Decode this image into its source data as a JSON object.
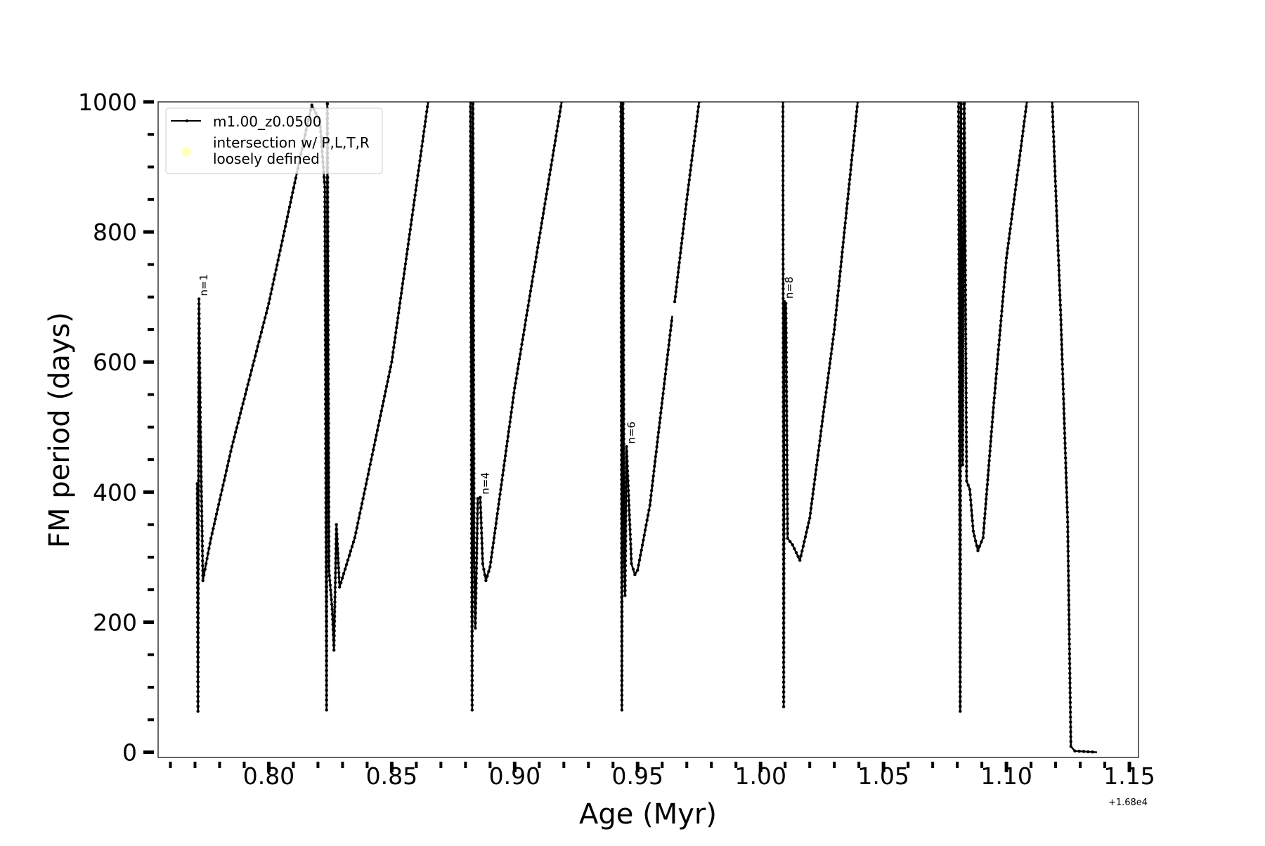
{
  "chart_data": {
    "type": "line",
    "title": "",
    "xlabel": "Age (Myr)",
    "ylabel": "FM period (days)",
    "x_offset_label": "+1.68e4",
    "xlim": [
      0.755,
      1.1537
    ],
    "ylim": [
      -8,
      1000
    ],
    "xticks": [
      0.8,
      0.85,
      0.9,
      0.95,
      1.0,
      1.05,
      1.1,
      1.15
    ],
    "xtick_labels": [
      "0.80",
      "0.85",
      "0.90",
      "0.95",
      "1.00",
      "1.05",
      "1.10",
      "1.15"
    ],
    "yticks": [
      0,
      200,
      400,
      600,
      800,
      1000
    ],
    "ytick_labels": [
      "0",
      "200",
      "400",
      "600",
      "800",
      "1000"
    ],
    "x_minor_step": 0.01,
    "y_minor_step": 50,
    "grid": false,
    "legend": {
      "placement": "top-left",
      "entries": [
        {
          "label": "m1.00_z0.0500",
          "marker": "line-dot",
          "color": "#000000"
        },
        {
          "label": "intersection w/ P,L,T,R\nloosely defined",
          "marker": "circle",
          "color": "#ffffc0"
        }
      ]
    },
    "series": [
      {
        "name": "m1.00_z0.0500",
        "color": "#000000",
        "segments": [
          [
            [
              0.7709,
              413
            ],
            [
              0.7712,
              63
            ],
            [
              0.7716,
              697
            ],
            [
              0.7722,
              500
            ],
            [
              0.7732,
              264
            ],
            [
              0.7745,
              290
            ],
            [
              0.7765,
              329
            ],
            [
              0.785,
              470
            ],
            [
              0.8,
              690
            ],
            [
              0.8152,
              957
            ],
            [
              0.8175,
              995
            ],
            [
              0.8208,
              970
            ],
            [
              0.8228,
              869
            ],
            [
              0.8235,
              65
            ],
            [
              0.8238,
              1050
            ],
            [
              0.8245,
              279
            ],
            [
              0.8258,
              220
            ],
            [
              0.8265,
              157
            ],
            [
              0.8275,
              350
            ],
            [
              0.8288,
              254
            ],
            [
              0.835,
              330
            ],
            [
              0.85,
              600
            ],
            [
              0.8648,
              1000
            ],
            [
              0.8655,
              1050
            ]
          ],
          [
            [
              0.8815,
              1050
            ],
            [
              0.882,
              1000
            ],
            [
              0.8827,
              65
            ],
            [
              0.883,
              1050
            ],
            [
              0.8835,
              300
            ],
            [
              0.884,
              191
            ],
            [
              0.885,
              390
            ],
            [
              0.886,
              392
            ],
            [
              0.887,
              290
            ],
            [
              0.8883,
              264
            ],
            [
              0.89,
              285
            ],
            [
              0.9,
              560
            ],
            [
              0.9191,
              1000
            ],
            [
              0.9195,
              1050
            ]
          ],
          [
            [
              0.943,
              1050
            ],
            [
              0.9432,
              1000
            ],
            [
              0.9436,
              65
            ],
            [
              0.944,
              1050
            ],
            [
              0.9445,
              300
            ],
            [
              0.9449,
              241
            ],
            [
              0.9455,
              470
            ],
            [
              0.9465,
              380
            ],
            [
              0.9475,
              290
            ],
            [
              0.9489,
              273
            ],
            [
              0.95,
              280
            ],
            [
              0.955,
              380
            ],
            [
              0.9641,
              671
            ]
          ],
          [
            [
              0.9651,
              693
            ],
            [
              0.97,
              850
            ],
            [
              0.975,
              1000
            ],
            [
              0.9755,
              1050
            ]
          ],
          [
            [
              1.0088,
              1050
            ],
            [
              1.0091,
              1000
            ],
            [
              1.0094,
              70
            ],
            [
              1.0097,
              693
            ],
            [
              1.0103,
              690
            ],
            [
              1.011,
              329
            ],
            [
              1.013,
              319
            ],
            [
              1.016,
              295
            ],
            [
              1.02,
              360
            ],
            [
              1.03,
              650
            ],
            [
              1.0395,
              1000
            ],
            [
              1.04,
              1050
            ]
          ],
          [
            [
              1.0802,
              1050
            ],
            [
              1.0805,
              1000
            ],
            [
              1.0812,
              63
            ],
            [
              1.0815,
              1050
            ],
            [
              1.0822,
              442
            ],
            [
              1.0828,
              1050
            ],
            [
              1.0838,
              417
            ],
            [
              1.0851,
              404
            ],
            [
              1.0865,
              340
            ],
            [
              1.0884,
              310
            ],
            [
              1.0905,
              330
            ],
            [
              1.0947,
              530
            ],
            [
              1.1,
              760
            ],
            [
              1.1083,
              1000
            ],
            [
              1.112,
              1080
            ],
            [
              1.1165,
              1080
            ],
            [
              1.1186,
              1000
            ],
            [
              1.122,
              680
            ],
            [
              1.1249,
              354
            ],
            [
              1.1262,
              9
            ],
            [
              1.1278,
              2
            ],
            [
              1.1368,
              0
            ]
          ]
        ]
      }
    ],
    "annotations": [
      {
        "text": "n=1",
        "x": 0.7716,
        "y": 697
      },
      {
        "text": "n=4",
        "x": 0.886,
        "y": 392
      },
      {
        "text": "n=6",
        "x": 0.9455,
        "y": 470
      },
      {
        "text": "n=8",
        "x": 1.0097,
        "y": 693
      }
    ]
  }
}
